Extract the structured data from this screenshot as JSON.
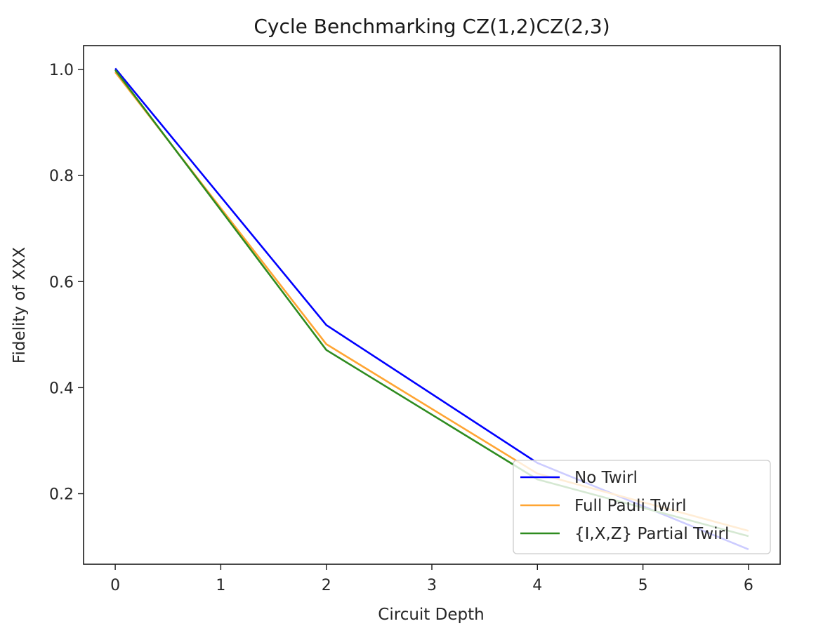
{
  "chart_data": {
    "type": "line",
    "title": "Cycle Benchmarking CZ(1,2)CZ(2,3)",
    "xlabel": "Circuit Depth",
    "ylabel": "Fidelity of XXX",
    "xlim": [
      -0.3,
      6.3
    ],
    "ylim": [
      0.067,
      1.045
    ],
    "xticks": [
      0,
      1,
      2,
      3,
      4,
      5,
      6
    ],
    "yticks": [
      0.2,
      0.4,
      0.6,
      0.8,
      1.0
    ],
    "ytick_labels": [
      "0.2",
      "0.4",
      "0.6",
      "0.8",
      "1.0"
    ],
    "grid": false,
    "legend_position": "lower right",
    "series": [
      {
        "name": "No Twirl",
        "color": "#0000ff",
        "x": [
          0,
          2,
          4,
          6
        ],
        "y": [
          1.002,
          0.518,
          0.258,
          0.095
        ]
      },
      {
        "name": "Full Pauli Twirl",
        "color": "#ffa533",
        "x": [
          0,
          2,
          4,
          6
        ],
        "y": [
          0.995,
          0.482,
          0.238,
          0.13
        ]
      },
      {
        "name": "{I,X,Z} Partial Twirl",
        "color": "#2e8b1f",
        "x": [
          0,
          2,
          4,
          6
        ],
        "y": [
          0.999,
          0.471,
          0.227,
          0.12
        ]
      }
    ]
  }
}
